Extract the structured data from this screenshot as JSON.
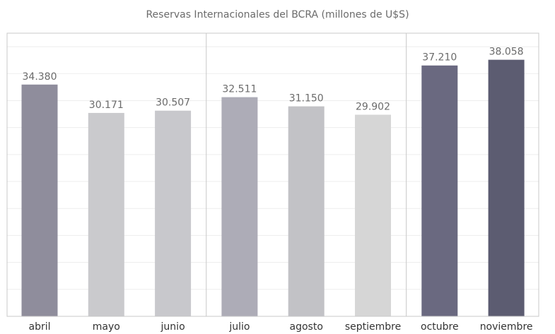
{
  "chart_data": {
    "type": "bar",
    "title": "Reservas Internacionales del BCRA (millones de U$S)",
    "xlabel": "",
    "ylabel": "",
    "categories": [
      "abril",
      "mayo",
      "junio",
      "julio",
      "agosto",
      "septiembre",
      "octubre",
      "noviembre"
    ],
    "values": [
      34380,
      30171,
      30507,
      32511,
      31150,
      29902,
      37210,
      38058
    ],
    "value_labels": [
      "34.380",
      "30.171",
      "30.507",
      "32.511",
      "31.150",
      "29.902",
      "37.210",
      "38.058"
    ],
    "ylim": [
      0,
      42000
    ],
    "grid": true,
    "legend": "none",
    "bar_colors": [
      "#8f8d9c",
      "#cacacd",
      "#c8c8cc",
      "#adacb7",
      "#c2c2c6",
      "#d6d6d6",
      "#6a6980",
      "#5c5c71"
    ],
    "label_color": "#6b6b6b",
    "tick_label_color": "#333333",
    "gridline_color": "#ededed",
    "frame_color": "#c8c8c8"
  }
}
